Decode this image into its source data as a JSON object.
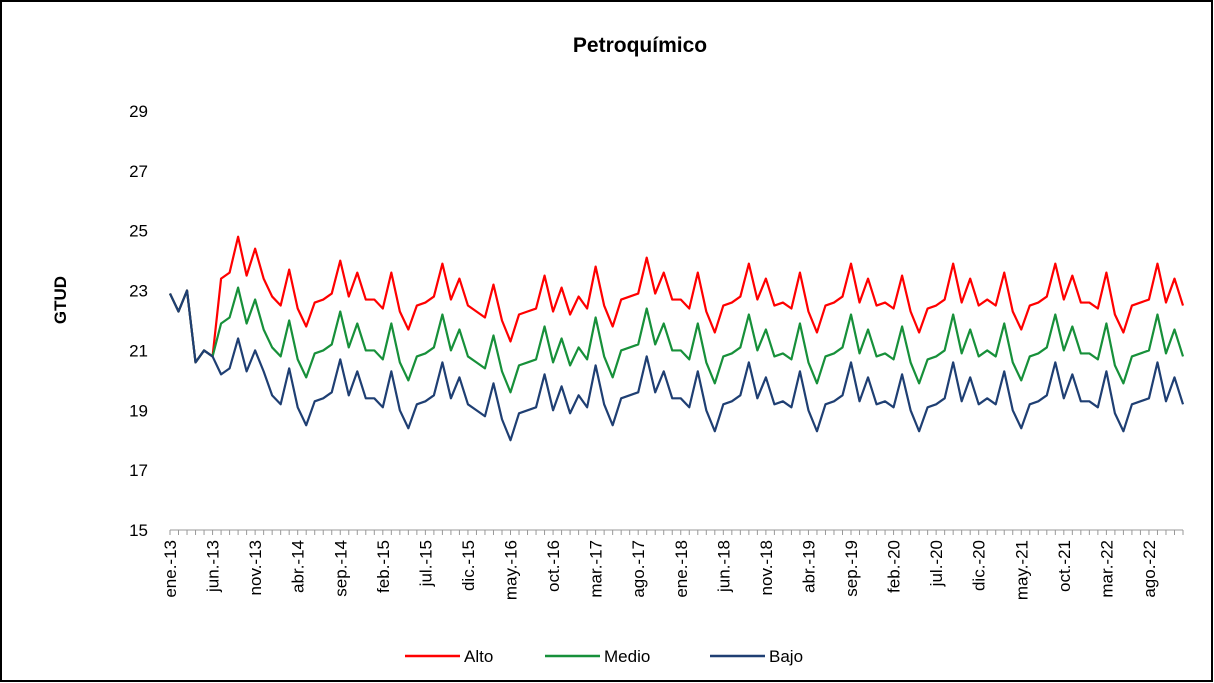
{
  "chart_data": {
    "type": "line",
    "title": "Petroquímico",
    "y_label": "GTUD",
    "categories": [
      "ene.-13",
      null,
      null,
      null,
      null,
      "jun.-13",
      null,
      null,
      null,
      null,
      "nov.-13",
      null,
      null,
      null,
      null,
      "abr.-14",
      null,
      null,
      null,
      null,
      "sep.-14",
      null,
      null,
      null,
      null,
      "feb.-15",
      null,
      null,
      null,
      null,
      "jul.-15",
      null,
      null,
      null,
      null,
      "dic.-15",
      null,
      null,
      null,
      null,
      "may.-16",
      null,
      null,
      null,
      null,
      "oct.-16",
      null,
      null,
      null,
      null,
      "mar.-17",
      null,
      null,
      null,
      null,
      "ago.-17",
      null,
      null,
      null,
      null,
      "ene.-18",
      null,
      null,
      null,
      null,
      "jun.-18",
      null,
      null,
      null,
      null,
      "nov.-18",
      null,
      null,
      null,
      null,
      "abr.-19",
      null,
      null,
      null,
      null,
      "sep.-19",
      null,
      null,
      null,
      null,
      "feb.-20",
      null,
      null,
      null,
      null,
      "jul.-20",
      null,
      null,
      null,
      null,
      "dic.-20",
      null,
      null,
      null,
      null,
      "may.-21",
      null,
      null,
      null,
      null,
      "oct.-21",
      null,
      null,
      null,
      null,
      "mar.-22",
      null,
      null,
      null,
      null,
      "ago.-22",
      null,
      null,
      null,
      null
    ],
    "series": [
      {
        "name": "Alto",
        "color": "#ff0000",
        "values": [
          22.9,
          22.3,
          23.0,
          20.6,
          21.0,
          20.8,
          23.4,
          23.6,
          24.8,
          23.5,
          24.4,
          23.4,
          22.8,
          22.5,
          23.7,
          22.4,
          21.8,
          22.6,
          22.7,
          22.9,
          24.0,
          22.8,
          23.6,
          22.7,
          22.7,
          22.4,
          23.6,
          22.3,
          21.7,
          22.5,
          22.6,
          22.8,
          23.9,
          22.7,
          23.4,
          22.5,
          22.3,
          22.1,
          23.2,
          22.0,
          21.3,
          22.2,
          22.3,
          22.4,
          23.5,
          22.3,
          23.1,
          22.2,
          22.8,
          22.4,
          23.8,
          22.5,
          21.8,
          22.7,
          22.8,
          22.9,
          24.1,
          22.9,
          23.6,
          22.7,
          22.7,
          22.4,
          23.6,
          22.3,
          21.6,
          22.5,
          22.6,
          22.8,
          23.9,
          22.7,
          23.4,
          22.5,
          22.6,
          22.4,
          23.6,
          22.3,
          21.6,
          22.5,
          22.6,
          22.8,
          23.9,
          22.6,
          23.4,
          22.5,
          22.6,
          22.4,
          23.5,
          22.3,
          21.6,
          22.4,
          22.5,
          22.7,
          23.9,
          22.6,
          23.4,
          22.5,
          22.7,
          22.5,
          23.6,
          22.3,
          21.7,
          22.5,
          22.6,
          22.8,
          23.9,
          22.7,
          23.5,
          22.6,
          22.6,
          22.4,
          23.6,
          22.2,
          21.6,
          22.5,
          22.6,
          22.7,
          23.9,
          22.6,
          23.4,
          22.5
        ]
      },
      {
        "name": "Medio",
        "color": "#17903a",
        "values": [
          22.9,
          22.3,
          23.0,
          20.6,
          21.0,
          20.8,
          21.9,
          22.1,
          23.1,
          21.9,
          22.7,
          21.7,
          21.1,
          20.8,
          22.0,
          20.7,
          20.1,
          20.9,
          21.0,
          21.2,
          22.3,
          21.1,
          21.9,
          21.0,
          21.0,
          20.7,
          21.9,
          20.6,
          20.0,
          20.8,
          20.9,
          21.1,
          22.2,
          21.0,
          21.7,
          20.8,
          20.6,
          20.4,
          21.5,
          20.3,
          19.6,
          20.5,
          20.6,
          20.7,
          21.8,
          20.6,
          21.4,
          20.5,
          21.1,
          20.7,
          22.1,
          20.8,
          20.1,
          21.0,
          21.1,
          21.2,
          22.4,
          21.2,
          21.9,
          21.0,
          21.0,
          20.7,
          21.9,
          20.6,
          19.9,
          20.8,
          20.9,
          21.1,
          22.2,
          21.0,
          21.7,
          20.8,
          20.9,
          20.7,
          21.9,
          20.6,
          19.9,
          20.8,
          20.9,
          21.1,
          22.2,
          20.9,
          21.7,
          20.8,
          20.9,
          20.7,
          21.8,
          20.6,
          19.9,
          20.7,
          20.8,
          21.0,
          22.2,
          20.9,
          21.7,
          20.8,
          21.0,
          20.8,
          21.9,
          20.6,
          20.0,
          20.8,
          20.9,
          21.1,
          22.2,
          21.0,
          21.8,
          20.9,
          20.9,
          20.7,
          21.9,
          20.5,
          19.9,
          20.8,
          20.9,
          21.0,
          22.2,
          20.9,
          21.7,
          20.8
        ]
      },
      {
        "name": "Bajo",
        "color": "#1f3f73",
        "values": [
          22.9,
          22.3,
          23.0,
          20.6,
          21.0,
          20.8,
          20.2,
          20.4,
          21.4,
          20.3,
          21.0,
          20.3,
          19.5,
          19.2,
          20.4,
          19.1,
          18.5,
          19.3,
          19.4,
          19.6,
          20.7,
          19.5,
          20.3,
          19.4,
          19.4,
          19.1,
          20.3,
          19.0,
          18.4,
          19.2,
          19.3,
          19.5,
          20.6,
          19.4,
          20.1,
          19.2,
          19.0,
          18.8,
          19.9,
          18.7,
          18.0,
          18.9,
          19.0,
          19.1,
          20.2,
          19.0,
          19.8,
          18.9,
          19.5,
          19.1,
          20.5,
          19.2,
          18.5,
          19.4,
          19.5,
          19.6,
          20.8,
          19.6,
          20.3,
          19.4,
          19.4,
          19.1,
          20.3,
          19.0,
          18.3,
          19.2,
          19.3,
          19.5,
          20.6,
          19.4,
          20.1,
          19.2,
          19.3,
          19.1,
          20.3,
          19.0,
          18.3,
          19.2,
          19.3,
          19.5,
          20.6,
          19.3,
          20.1,
          19.2,
          19.3,
          19.1,
          20.2,
          19.0,
          18.3,
          19.1,
          19.2,
          19.4,
          20.6,
          19.3,
          20.1,
          19.2,
          19.4,
          19.2,
          20.3,
          19.0,
          18.4,
          19.2,
          19.3,
          19.5,
          20.6,
          19.4,
          20.2,
          19.3,
          19.3,
          19.1,
          20.3,
          18.9,
          18.3,
          19.2,
          19.3,
          19.4,
          20.6,
          19.3,
          20.1,
          19.2
        ]
      }
    ],
    "ylim": [
      15,
      29
    ],
    "yticks": [
      15,
      17,
      19,
      21,
      23,
      25,
      27,
      29
    ],
    "grid": false,
    "legend": "bottom"
  }
}
